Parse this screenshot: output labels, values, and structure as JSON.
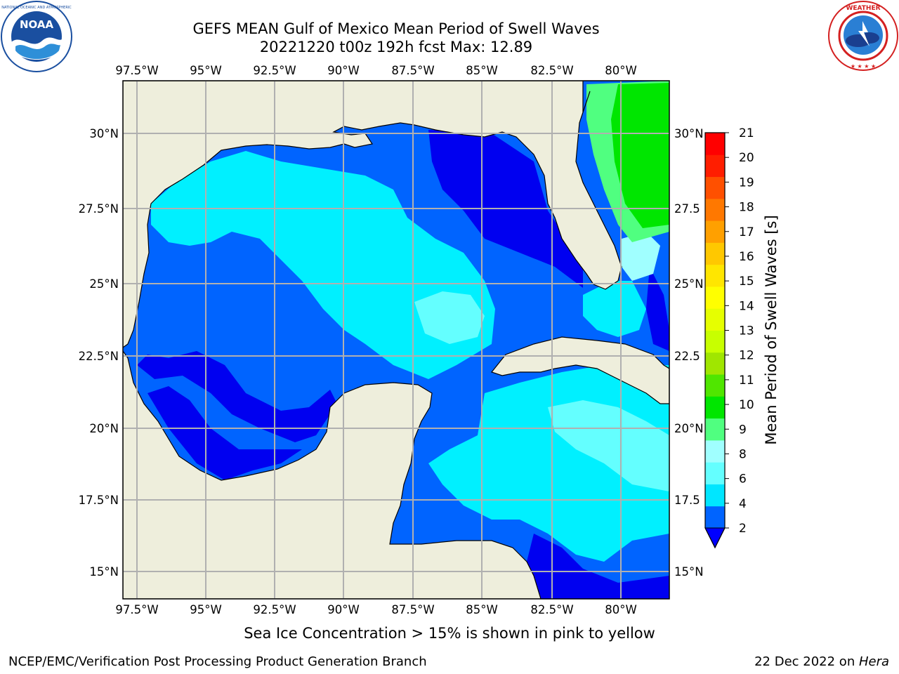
{
  "title": {
    "line1": "GEFS MEAN Gulf of Mexico Mean Period of Swell Waves",
    "line2": "20221220 t00z 192h fcst   Max: 12.89"
  },
  "logos": {
    "left": {
      "text": "NOAA",
      "ring_text": "NATIONAL OCEANIC AND ATMOSPHERIC ADMINISTRATION · U.S. DEPARTMENT OF COMMERCE",
      "icon": "noaa-logo"
    },
    "right": {
      "ring_text": "NATIONAL WEATHER SERVICE",
      "icon": "nws-logo"
    }
  },
  "map": {
    "lon_ticks": [
      "97.5°W",
      "95°W",
      "92.5°W",
      "90°W",
      "87.5°W",
      "85°W",
      "82.5°W",
      "80°W"
    ],
    "lat_ticks_left": [
      "30°N",
      "27.5°N",
      "25°N",
      "22.5°N",
      "20°N",
      "17.5°N",
      "15°N"
    ],
    "lat_ticks_right": [
      "30°N",
      "27.5",
      "25°N",
      "22.5",
      "20°N",
      "17.5",
      "15°N"
    ],
    "land_color": "#eeeedc",
    "grid_color": "#b0b0b0"
  },
  "colorbar": {
    "label": "Mean Period of Swell Waves [s]",
    "ticks": [
      "2",
      "4",
      "6",
      "8",
      "9",
      "10",
      "11",
      "12",
      "13",
      "14",
      "15",
      "16",
      "17",
      "18",
      "19",
      "20",
      "21"
    ],
    "colors": [
      "#0064ff",
      "#00e6ff",
      "#64ffff",
      "#a0ffff",
      "#50ff80",
      "#00e600",
      "#50e600",
      "#a0e600",
      "#c8ff00",
      "#e6ff00",
      "#ffff00",
      "#ffe600",
      "#ffc800",
      "#ffa000",
      "#ff7800",
      "#ff5000",
      "#ff1e00",
      "#ff0000"
    ],
    "under_color": "#0000ff"
  },
  "field_colors": {
    "c0": "#0000f0",
    "c1": "#0064ff",
    "c2": "#00f0ff",
    "c3": "#64ffff",
    "c4": "#a0ffff",
    "c5": "#50ff80",
    "c6": "#00e600",
    "c7": "#50e600",
    "c8": "#c8ff00"
  },
  "footer": {
    "note": "Sea Ice Concentration > 15% is shown in pink to yellow",
    "credit": "NCEP/EMC/Verification Post Processing Product Generation Branch",
    "date": "22 Dec 2022 on ",
    "host": "Hera"
  }
}
